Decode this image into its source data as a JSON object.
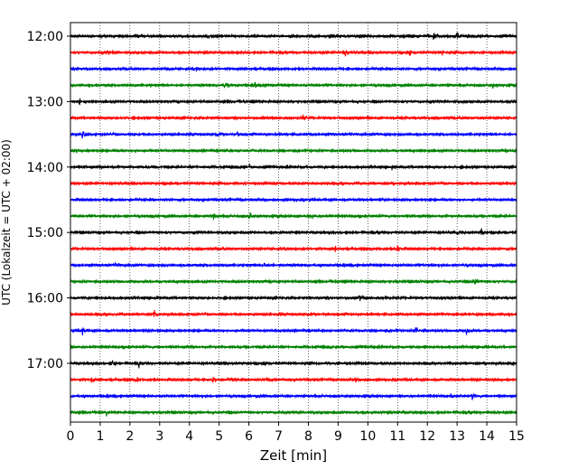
{
  "chart_data": {
    "type": "line",
    "subtype": "seismogram-helicorder",
    "xlabel": "Zeit  [min]",
    "ylabel": "UTC (Lokalzeit = UTC + 02:00)",
    "xlim": [
      0,
      15
    ],
    "xticks": [
      0,
      1,
      2,
      3,
      4,
      5,
      6,
      7,
      8,
      9,
      10,
      11,
      12,
      13,
      14,
      15
    ],
    "yticks": [
      "12:00",
      "13:00",
      "14:00",
      "15:00",
      "16:00",
      "17:00"
    ],
    "grid": "vertical dotted lines at each minute",
    "row_interval_min": 15,
    "colors_cycle": [
      "#000000",
      "#ff0000",
      "#0000ff",
      "#008000"
    ],
    "rows": [
      {
        "start": "12:00",
        "color": "#000000",
        "events": [
          [
            12.2,
            3.0
          ],
          [
            13.0,
            2.0
          ],
          [
            4.6,
            1.2
          ]
        ]
      },
      {
        "start": "12:15",
        "color": "#ff0000",
        "events": [
          [
            9.2,
            4.0
          ],
          [
            1.3,
            2.0
          ],
          [
            11.4,
            2.0
          ],
          [
            12.5,
            2.0
          ]
        ]
      },
      {
        "start": "12:30",
        "color": "#0000ff",
        "events": [
          [
            3.3,
            2.2
          ],
          [
            4.2,
            1.2
          ]
        ]
      },
      {
        "start": "12:45",
        "color": "#008000",
        "events": [
          [
            5.2,
            2.5
          ],
          [
            14.2,
            2.0
          ],
          [
            6.2,
            1.2
          ]
        ]
      },
      {
        "start": "13:00",
        "color": "#000000",
        "events": [
          [
            0.3,
            2.0
          ],
          [
            14.9,
            2.0
          ],
          [
            13.2,
            1.2
          ]
        ]
      },
      {
        "start": "13:15",
        "color": "#ff0000",
        "events": [
          [
            7.8,
            2.7
          ],
          [
            15.0,
            1.5
          ]
        ]
      },
      {
        "start": "13:30",
        "color": "#0000ff",
        "events": [
          [
            0.4,
            2.2
          ],
          [
            5.6,
            1.5
          ],
          [
            13.0,
            1.5
          ],
          [
            4.9,
            1.2
          ]
        ]
      },
      {
        "start": "13:45",
        "color": "#008000",
        "events": [
          [
            0.2,
            1.5
          ]
        ]
      },
      {
        "start": "14:00",
        "color": "#000000",
        "events": [
          [
            10.8,
            1.8
          ],
          [
            6.0,
            1.2
          ]
        ]
      },
      {
        "start": "14:15",
        "color": "#ff0000",
        "events": [
          [
            5.9,
            1.5
          ],
          [
            14.8,
            1.2
          ]
        ]
      },
      {
        "start": "14:30",
        "color": "#0000ff",
        "events": [
          [
            10.5,
            1.0
          ]
        ]
      },
      {
        "start": "14:45",
        "color": "#008000",
        "events": [
          [
            6.0,
            2.5
          ],
          [
            4.8,
            2.0
          ],
          [
            8.1,
            1.8
          ]
        ]
      },
      {
        "start": "15:00",
        "color": "#000000",
        "events": [
          [
            13.0,
            2.0
          ],
          [
            13.8,
            2.0
          ],
          [
            4.0,
            1.2
          ]
        ]
      },
      {
        "start": "15:15",
        "color": "#ff0000",
        "events": [
          [
            11.0,
            2.2
          ],
          [
            8.9,
            1.8
          ],
          [
            7.2,
            1.2
          ]
        ]
      },
      {
        "start": "15:30",
        "color": "#0000ff",
        "events": [
          [
            1.5,
            2.3
          ],
          [
            6.5,
            1.8
          ]
        ]
      },
      {
        "start": "15:45",
        "color": "#008000",
        "events": [
          [
            13.6,
            2.2
          ]
        ]
      },
      {
        "start": "16:00",
        "color": "#000000",
        "events": [
          [
            9.7,
            2.0
          ],
          [
            10.6,
            1.2
          ]
        ]
      },
      {
        "start": "16:15",
        "color": "#ff0000",
        "events": [
          [
            2.8,
            3.0
          ],
          [
            7.0,
            1.2
          ]
        ]
      },
      {
        "start": "16:30",
        "color": "#0000ff",
        "events": [
          [
            0.4,
            2.0
          ],
          [
            11.6,
            2.2
          ],
          [
            13.3,
            2.5
          ]
        ]
      },
      {
        "start": "16:45",
        "color": "#008000",
        "events": [
          [
            8.8,
            1.3
          ],
          [
            10.1,
            1.3
          ]
        ]
      },
      {
        "start": "17:00",
        "color": "#000000",
        "events": [
          [
            1.4,
            3.3
          ],
          [
            2.3,
            2.5
          ],
          [
            6.5,
            1.8
          ],
          [
            14.9,
            1.8
          ]
        ]
      },
      {
        "start": "17:15",
        "color": "#ff0000",
        "events": [
          [
            0.7,
            2.0
          ],
          [
            2.2,
            2.3
          ],
          [
            4.8,
            2.0
          ],
          [
            5.4,
            1.8
          ],
          [
            6.6,
            1.5
          ],
          [
            9.6,
            2.0
          ]
        ]
      },
      {
        "start": "17:30",
        "color": "#0000ff",
        "events": [
          [
            12.8,
            1.5
          ],
          [
            13.5,
            1.8
          ]
        ]
      },
      {
        "start": "17:45",
        "color": "#008000",
        "events": [
          [
            1.2,
            1.8
          ]
        ]
      }
    ]
  }
}
